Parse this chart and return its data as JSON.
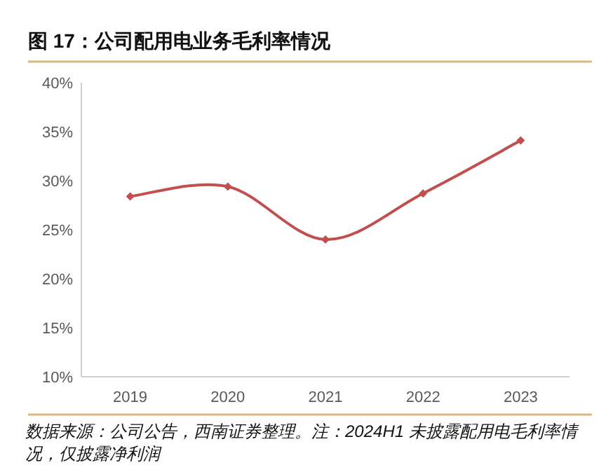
{
  "chart_data": {
    "type": "line",
    "title": "图 17：公司配用电业务毛利率情况",
    "categories": [
      "2019",
      "2020",
      "2021",
      "2022",
      "2023"
    ],
    "series": [
      {
        "color": "#c0504d",
        "values": [
          28.4,
          29.4,
          24.0,
          28.7,
          34.1
        ]
      }
    ],
    "ylim": [
      10,
      40
    ],
    "yticks": [
      {
        "value": 10,
        "label": "10%"
      },
      {
        "value": 15,
        "label": "15%"
      },
      {
        "value": 20,
        "label": "20%"
      },
      {
        "value": 25,
        "label": "25%"
      },
      {
        "value": 30,
        "label": "30%"
      },
      {
        "value": 35,
        "label": "35%"
      },
      {
        "value": 40,
        "label": "40%"
      }
    ],
    "marker": "diamond",
    "line_style": "solid",
    "grid": false,
    "annotations": [
      "数据来源：公司公告，西南证券整理。注：2024H1 未披露配用电毛利率情况，仅披露净利润"
    ]
  }
}
